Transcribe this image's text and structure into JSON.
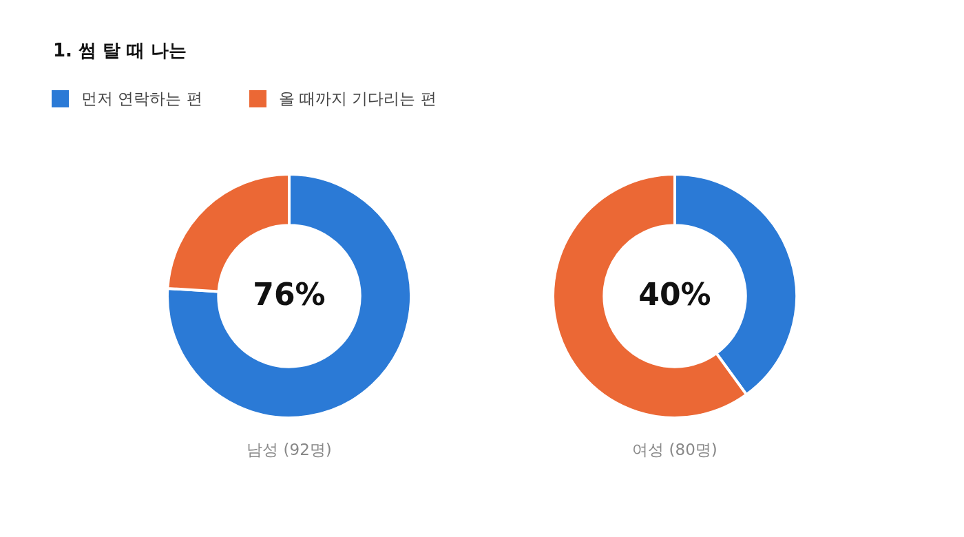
{
  "chart_data": [
    {
      "type": "donut",
      "title": "1. 썸 탈 때 나는",
      "categories": [
        "먼저 연락하는 편",
        "올 때까지 기다리는 편"
      ],
      "values": [
        76,
        24
      ],
      "colors": [
        "#2b7ad6",
        "#eb6835"
      ],
      "legend": "top left",
      "annotations": [
        "76%"
      ],
      "xlabel": "남성 (92명)"
    },
    {
      "type": "donut",
      "categories": [
        null,
        null
      ],
      "values": [
        40,
        60
      ],
      "colors": [
        "#2b7ad6",
        "#eb6835"
      ],
      "annotations": [
        "40%"
      ],
      "xlabel": "여성 (80명)"
    }
  ]
}
